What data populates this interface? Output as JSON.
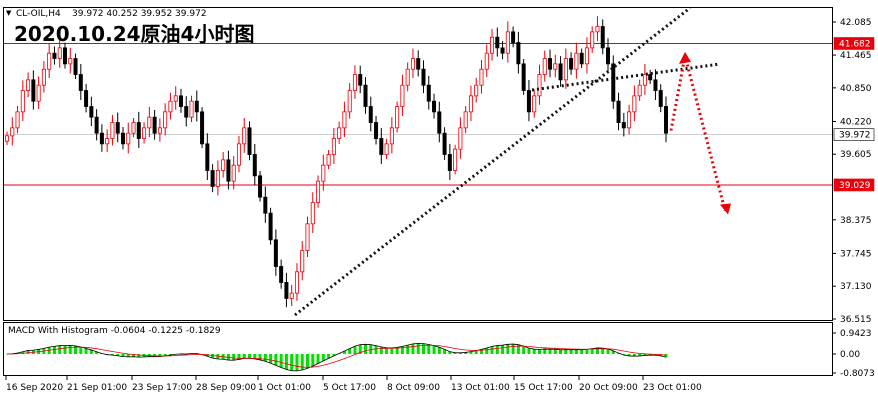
{
  "header": {
    "symbol": "CL-OIL,H4",
    "ohlc": "39.972 40.252 39.952 39.972"
  },
  "title": "2020.10.24原油4小时图",
  "macd_label": "MACD With Histogram -0.0604 -0.1225 -0.1829",
  "colors": {
    "bull_candle": "#e8000b",
    "bear_candle": "#000000",
    "level_line": "#e8000b",
    "trendline": "#111111",
    "forecast_arrow": "#e8000b",
    "macd_hist": "#00e000",
    "macd_line": "#000000",
    "signal_line": "#e8000b",
    "current_price_tag": "#ffffff"
  },
  "chart_data": {
    "type": "candlestick",
    "timeframe": "H4",
    "ylim": [
      36.515,
      42.2
    ],
    "y_ticks": [
      "42.085",
      "41.465",
      "40.850",
      "40.220",
      "39.605",
      "38.375",
      "37.745",
      "37.130",
      "36.515"
    ],
    "price_tags": [
      {
        "label": "41.682",
        "value": 41.682,
        "kind": "resistance"
      },
      {
        "label": "39.972",
        "value": 39.972,
        "kind": "current"
      },
      {
        "label": "39.029",
        "value": 39.029,
        "kind": "support"
      }
    ],
    "x_tick_labels": [
      "16 Sep 2020",
      "21 Sep 01:00",
      "23 Sep 17:00",
      "28 Sep 09:00",
      "1 Oct 01:00",
      "5 Oct 17:00",
      "8 Oct 09:00",
      "13 Oct 01:00",
      "15 Oct 17:00",
      "20 Oct 09:00",
      "23 Oct 01:00"
    ],
    "close": [
      39.95,
      40.1,
      40.4,
      40.8,
      41.0,
      40.6,
      40.9,
      41.2,
      41.5,
      41.4,
      41.6,
      41.3,
      41.4,
      41.1,
      40.8,
      40.5,
      40.3,
      40.0,
      39.8,
      39.9,
      40.2,
      40.0,
      39.8,
      40.0,
      40.2,
      39.9,
      40.1,
      40.3,
      40.0,
      40.1,
      40.4,
      40.6,
      40.7,
      40.5,
      40.3,
      40.6,
      40.4,
      39.8,
      39.3,
      39.0,
      39.3,
      39.5,
      39.1,
      39.4,
      39.8,
      40.1,
      39.6,
      39.2,
      38.8,
      38.5,
      38.0,
      37.5,
      37.2,
      36.9,
      37.0,
      37.4,
      37.8,
      38.3,
      38.7,
      39.1,
      39.4,
      39.6,
      39.9,
      40.1,
      40.4,
      40.8,
      41.1,
      40.9,
      40.5,
      40.2,
      39.9,
      39.6,
      39.8,
      40.1,
      40.5,
      40.9,
      41.2,
      41.4,
      41.2,
      40.9,
      40.6,
      40.4,
      40.0,
      39.6,
      39.3,
      39.7,
      40.1,
      40.4,
      40.7,
      40.9,
      41.2,
      41.5,
      41.8,
      41.6,
      41.5,
      41.9,
      41.7,
      41.3,
      40.8,
      40.4,
      40.7,
      41.1,
      41.4,
      41.2,
      41.3,
      41.0,
      41.4,
      41.2,
      41.5,
      41.3,
      41.6,
      41.9,
      42.0,
      41.6,
      41.3,
      40.6,
      40.2,
      40.1,
      40.4,
      40.7,
      40.9,
      41.1,
      41.0,
      40.8,
      40.5,
      40.0
    ],
    "forecast_path": [
      {
        "x": "23 Oct 05:00",
        "y": 40.05
      },
      {
        "x": "23 Oct 17:00",
        "y": 41.45
      },
      {
        "x": "26 Oct 09:00",
        "y": 38.55
      }
    ]
  }
}
